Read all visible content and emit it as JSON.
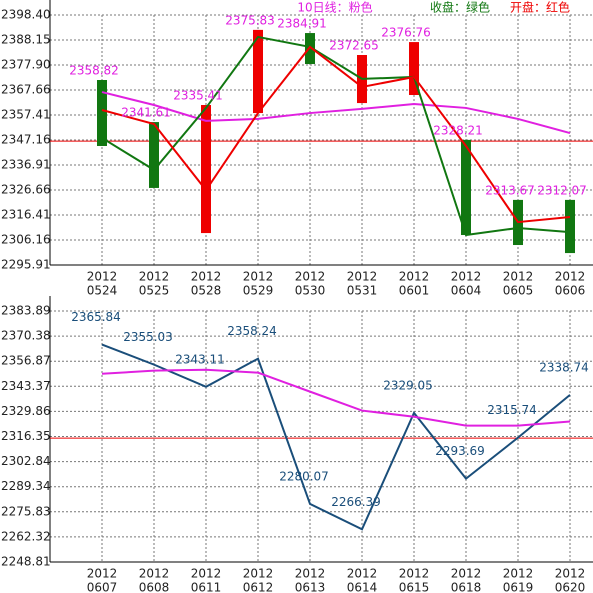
{
  "chart_data": [
    {
      "type": "candle-line",
      "legend": [
        "10日线：粉色",
        "收盘：绿色",
        "开盘：红色"
      ],
      "categories": [
        [
          "2012",
          "0524"
        ],
        [
          "2012",
          "0525"
        ],
        [
          "2012",
          "0528"
        ],
        [
          "2012",
          "0529"
        ],
        [
          "2012",
          "0530"
        ],
        [
          "2012",
          "0531"
        ],
        [
          "2012",
          "0601"
        ],
        [
          "2012",
          "0604"
        ],
        [
          "2012",
          "0605"
        ],
        [
          "2012",
          "0606"
        ]
      ],
      "ylim": [
        2295.91,
        2398.4
      ],
      "yticks": [
        {
          "value": 2398.4,
          "label": "2398.40"
        },
        2388.15,
        {
          "value": 2377.9,
          "label": "2377.90"
        },
        2367.66,
        2357.41,
        2347.16,
        2336.91,
        2326.66,
        2316.41,
        2306.16,
        2295.91
      ],
      "grid": true,
      "candles": {
        "high": [
          2371.75,
          2354.5,
          2361.5,
          2392.3,
          2391.0,
          2382.0,
          2387.3,
          2347.2,
          2322.6,
          2322.6
        ],
        "low": [
          2344.7,
          2327.5,
          2309.0,
          2358.2,
          2378.3,
          2362.3,
          2365.6,
          2308.2,
          2304.1,
          2300.8
        ],
        "colors": [
          "#117711",
          "#117711",
          "#ee0000",
          "#ee0000",
          "#117711",
          "#ee0000",
          "#ee0000",
          "#117711",
          "#117711",
          "#117711"
        ]
      },
      "labels": [
        2358.82,
        2341.61,
        2335.41,
        2375.83,
        2384.91,
        2372.65,
        2376.76,
        2328.21,
        2313.67,
        2312.07
      ],
      "labels_color": "#e020e0",
      "ref_line": 2346.7,
      "ref_color": "#ee0000",
      "series": [
        {
          "name": "10日线：粉色",
          "color": "#e020e0",
          "values": [
            2366.8,
            2361.5,
            2355.0,
            2355.8,
            2358.2,
            2359.9,
            2361.9,
            2360.3,
            2355.8,
            2350.0
          ]
        },
        {
          "name": "收盘：绿色",
          "color": "#117711",
          "values": [
            2348.0,
            2334.9,
            2360.3,
            2389.4,
            2385.3,
            2372.2,
            2373.0,
            2308.2,
            2311.1,
            2309.4
          ]
        },
        {
          "name": "开盘：红色",
          "color": "#ee0000",
          "values": [
            2359.45,
            2353.7,
            2326.6,
            2358.2,
            2385.3,
            2368.9,
            2373.0,
            2344.7,
            2313.5,
            2315.6
          ]
        }
      ]
    },
    {
      "type": "line",
      "categories": [
        [
          "2012",
          "0607"
        ],
        [
          "2012",
          "0608"
        ],
        [
          "2012",
          "0611"
        ],
        [
          "2012",
          "0612"
        ],
        [
          "2012",
          "0613"
        ],
        [
          "2012",
          "0614"
        ],
        [
          "2012",
          "0615"
        ],
        [
          "2012",
          "0618"
        ],
        [
          "2012",
          "0619"
        ],
        [
          "2012",
          "0620"
        ]
      ],
      "ylim": [
        2248.81,
        2383.89
      ],
      "yticks": [
        2383.89,
        2370.38,
        2356.87,
        2343.37,
        2329.86,
        2316.35,
        2302.84,
        2289.34,
        2275.83,
        2262.32,
        2248.81
      ],
      "grid": true,
      "ref_line": 2315.5,
      "ref_color": "#ee0000",
      "labels_color": "#1a4e7a",
      "series": [
        {
          "color": "#1a4e7a",
          "values": [
            2365.84,
            2355.03,
            2343.11,
            2358.24,
            2280.07,
            2266.39,
            2329.05,
            2293.69,
            2315.74,
            2338.74
          ],
          "labeled": true
        },
        {
          "color": "#e020e0",
          "values": [
            2350.1,
            2351.8,
            2352.3,
            2350.7,
            2340.5,
            2330.3,
            2327.0,
            2322.2,
            2322.2,
            2324.4
          ]
        }
      ]
    }
  ]
}
